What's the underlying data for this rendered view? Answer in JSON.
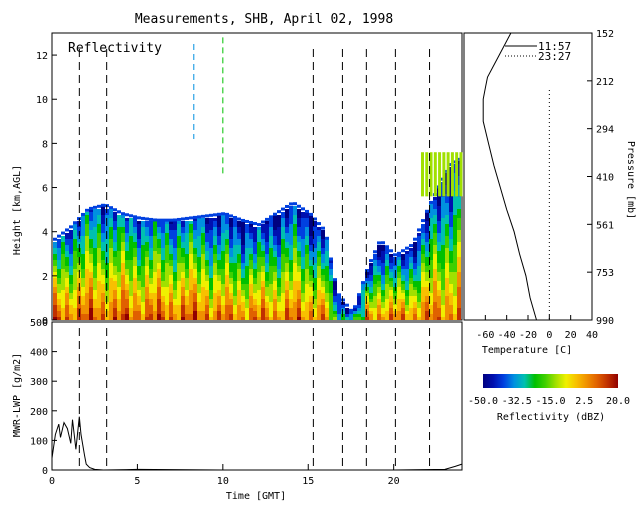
{
  "title": "Measurements, SHB, April 02, 1998",
  "chart_data": [
    {
      "id": "reflectivity",
      "type": "heatmap",
      "annotation": "Reflectivity",
      "ylabel": "Height [km,AGL]",
      "xlim": [
        0,
        24
      ],
      "ylim": [
        0,
        13
      ],
      "yticks": [
        "0",
        "2",
        "4",
        "6",
        "8",
        "10",
        "12"
      ],
      "vertical_dashed_lines_gmt": [
        1.6,
        3.2,
        15.3,
        17.0,
        18.4,
        20.1,
        22.1
      ],
      "colorbar": {
        "label": "Reflectivity (dBZ)",
        "ticks": [
          "-50.0",
          "-32.5",
          "-15.0",
          "2.5",
          "20.0"
        ],
        "range": [
          -50,
          20
        ],
        "colors": [
          "#000080",
          "#0010b0",
          "#0040e0",
          "#0090e0",
          "#00c0b0",
          "#00c000",
          "#40d000",
          "#a0e000",
          "#f0f000",
          "#f8c000",
          "#f09000",
          "#e06000",
          "#c03000",
          "#900000"
        ]
      },
      "echo_top_km": [
        [
          0,
          3.6
        ],
        [
          1,
          4.2
        ],
        [
          2,
          5.0
        ],
        [
          3,
          5.2
        ],
        [
          4,
          4.8
        ],
        [
          5,
          4.6
        ],
        [
          6,
          4.5
        ],
        [
          7,
          4.5
        ],
        [
          8,
          4.6
        ],
        [
          9,
          4.7
        ],
        [
          10,
          4.8
        ],
        [
          11,
          4.5
        ],
        [
          12,
          4.3
        ],
        [
          13,
          4.8
        ],
        [
          14,
          5.3
        ],
        [
          15,
          4.8
        ],
        [
          15.9,
          4.0
        ],
        [
          16.6,
          1.2
        ],
        [
          17.5,
          0.3
        ],
        [
          18.4,
          2.4
        ],
        [
          19.1,
          3.6
        ],
        [
          20.0,
          2.9
        ],
        [
          21.0,
          3.4
        ],
        [
          22.0,
          5.2
        ],
        [
          23.2,
          7.0
        ],
        [
          24,
          7.4
        ]
      ]
    },
    {
      "id": "lwp",
      "type": "line",
      "ylabel": "MWR-LWP [g/m2]",
      "xlabel": "Time [GMT]",
      "xlim": [
        0,
        24
      ],
      "ylim": [
        0,
        500
      ],
      "xticks": [
        "0",
        "5",
        "10",
        "15",
        "20"
      ],
      "yticks": [
        "0",
        "100",
        "200",
        "300",
        "400",
        "500"
      ],
      "x": [
        0.0,
        0.2,
        0.4,
        0.5,
        0.7,
        0.9,
        1.1,
        1.2,
        1.4,
        1.6,
        1.7,
        1.9,
        2.0,
        2.2,
        2.5,
        3.0,
        5.0,
        10.0,
        15.0,
        20.0,
        23.0,
        23.6,
        24.0
      ],
      "y": [
        40,
        120,
        155,
        110,
        160,
        140,
        90,
        170,
        70,
        180,
        120,
        50,
        20,
        8,
        2,
        0,
        2,
        0,
        0,
        0,
        2,
        12,
        20
      ],
      "vertical_dashed_lines_gmt": [
        1.6,
        3.2,
        15.3,
        17.0,
        18.4,
        20.1,
        22.1
      ]
    },
    {
      "id": "sounding",
      "type": "line",
      "xlabel": "Temperature [C]",
      "ylabel": "Pressure [mb]",
      "xlim": [
        -80,
        40
      ],
      "xticks": [
        "-60",
        "-40",
        "-20",
        "0",
        "20",
        "40"
      ],
      "pressure_ticks": [
        "152",
        "212",
        "294",
        "410",
        "561",
        "753",
        "990"
      ],
      "legend": [
        "11:57",
        "23:27"
      ],
      "profile_height_km": [
        0,
        0.5,
        1.0,
        1.5,
        2.0,
        3.0,
        4.0,
        5.0,
        6.0,
        7.0,
        8.0,
        9.0,
        10.0,
        10.5,
        11.0,
        12.0,
        13.0
      ],
      "profile_temp_c": [
        -12,
        -15,
        -18,
        -20,
        -22,
        -28,
        -33,
        -40,
        -46,
        -52,
        -57,
        -62,
        -62,
        -60,
        -58,
        -47,
        -36
      ],
      "dotted_line_temp_c": 0
    }
  ]
}
